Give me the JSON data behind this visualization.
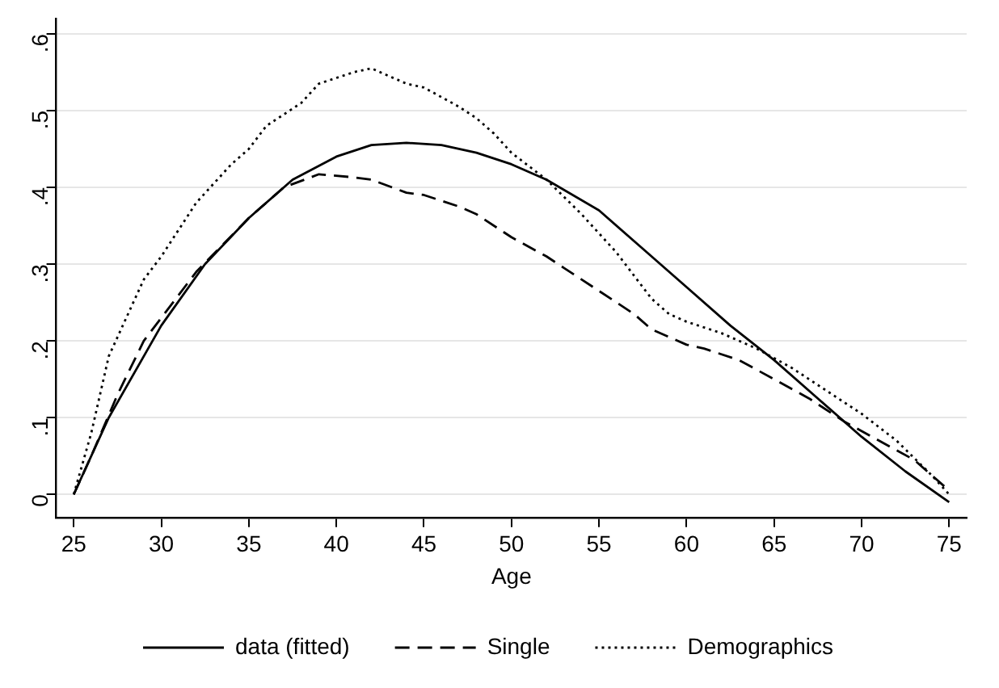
{
  "chart_data": {
    "type": "line",
    "xlabel": "Age",
    "xlim": [
      24,
      76
    ],
    "xticks": [
      25,
      30,
      35,
      40,
      45,
      50,
      55,
      60,
      65,
      70,
      75
    ],
    "ylim": [
      -0.03,
      0.62
    ],
    "yticks": [
      {
        "value": 0,
        "label": "0"
      },
      {
        "value": 0.1,
        "label": ".1"
      },
      {
        "value": 0.2,
        "label": ".2"
      },
      {
        "value": 0.3,
        "label": ".3"
      },
      {
        "value": 0.4,
        "label": ".4"
      },
      {
        "value": 0.5,
        "label": ".5"
      },
      {
        "value": 0.6,
        "label": ".6"
      }
    ],
    "grid": "y",
    "legend": "bottom",
    "marker": "none",
    "series": [
      {
        "name": "data (fitted)",
        "color": "#000000",
        "line_style": "solid",
        "x": [
          25,
          27,
          30,
          32.5,
          35,
          37.5,
          40,
          42,
          44,
          46,
          48,
          50,
          52,
          55,
          57.5,
          60,
          62.5,
          65,
          67.5,
          70,
          72.5,
          75
        ],
        "values": [
          0,
          0.1,
          0.22,
          0.3,
          0.36,
          0.41,
          0.44,
          0.455,
          0.458,
          0.455,
          0.445,
          0.43,
          0.41,
          0.37,
          0.32,
          0.27,
          0.22,
          0.175,
          0.125,
          0.075,
          0.03,
          -0.01
        ]
      },
      {
        "name": "Single",
        "color": "#000000",
        "line_style": "dashed",
        "x": [
          25,
          26,
          27.5,
          29,
          30,
          32,
          35,
          37,
          39,
          41,
          42,
          44,
          45,
          47,
          48,
          50,
          52,
          53,
          55,
          57,
          58,
          60,
          61,
          63,
          65,
          67,
          69,
          71,
          73,
          75
        ],
        "values": [
          0,
          0.05,
          0.13,
          0.2,
          0.23,
          0.29,
          0.36,
          0.4,
          0.417,
          0.413,
          0.41,
          0.393,
          0.39,
          0.375,
          0.365,
          0.335,
          0.31,
          0.295,
          0.265,
          0.235,
          0.215,
          0.195,
          0.19,
          0.175,
          0.15,
          0.125,
          0.095,
          0.07,
          0.045,
          0.005
        ]
      },
      {
        "name": "Demographics",
        "color": "#000000",
        "line_style": "dotted",
        "x": [
          25,
          26,
          27,
          28,
          29,
          30,
          32,
          34,
          35,
          36,
          37,
          38,
          39,
          41,
          42,
          43,
          44,
          45,
          47,
          48,
          49,
          50,
          52,
          54,
          56,
          57,
          58,
          59,
          60,
          62,
          64,
          66,
          68,
          70,
          72,
          74,
          75
        ],
        "values": [
          0,
          0.08,
          0.18,
          0.23,
          0.28,
          0.31,
          0.38,
          0.43,
          0.45,
          0.48,
          0.495,
          0.51,
          0.535,
          0.55,
          0.555,
          0.545,
          0.535,
          0.53,
          0.505,
          0.49,
          0.47,
          0.445,
          0.41,
          0.365,
          0.315,
          0.285,
          0.255,
          0.235,
          0.225,
          0.21,
          0.19,
          0.165,
          0.135,
          0.105,
          0.07,
          0.025,
          0
        ]
      }
    ]
  }
}
